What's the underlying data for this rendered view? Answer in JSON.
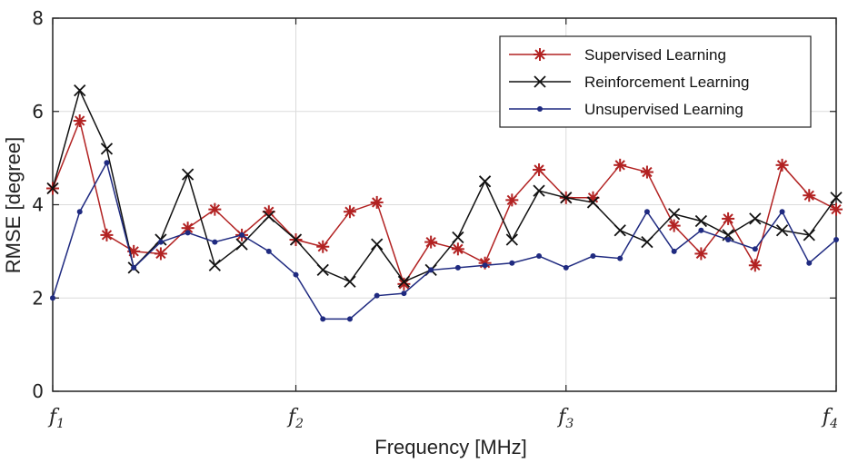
{
  "chart_data": {
    "type": "line",
    "xlabel": "Frequency [MHz]",
    "ylabel": "RMSE [degree]",
    "ylim": [
      0,
      8
    ],
    "yticks": [
      0,
      2,
      4,
      6,
      8
    ],
    "xlim": [
      0,
      29
    ],
    "xticks": [
      {
        "pos": 0,
        "base": "f",
        "sub": "1"
      },
      {
        "pos": 9,
        "base": "f",
        "sub": "2"
      },
      {
        "pos": 19,
        "base": "f",
        "sub": "3"
      },
      {
        "pos": 29,
        "base": "f",
        "sub": "4"
      }
    ],
    "grid": true,
    "legend_position": "top-right",
    "x": [
      0,
      1,
      2,
      3,
      4,
      5,
      6,
      7,
      8,
      9,
      10,
      11,
      12,
      13,
      14,
      15,
      16,
      17,
      18,
      19,
      20,
      21,
      22,
      23,
      24,
      25,
      26,
      27,
      28,
      29
    ],
    "series": [
      {
        "name": "Supervised Learning",
        "color": "#b22222",
        "marker": "asterisk",
        "values": [
          4.35,
          5.8,
          3.35,
          3.0,
          2.95,
          3.5,
          3.9,
          3.35,
          3.85,
          3.25,
          3.1,
          3.85,
          4.05,
          2.3,
          3.2,
          3.05,
          2.75,
          4.1,
          4.75,
          4.15,
          4.15,
          4.85,
          4.7,
          3.55,
          2.95,
          3.7,
          2.7,
          4.85,
          4.2,
          3.9
        ]
      },
      {
        "name": "Reinforcement Learning",
        "color": "#111111",
        "marker": "x",
        "values": [
          4.35,
          6.45,
          5.2,
          2.65,
          3.25,
          4.65,
          2.7,
          3.15,
          3.75,
          3.25,
          2.6,
          2.35,
          3.15,
          2.35,
          2.6,
          3.3,
          4.5,
          3.25,
          4.3,
          4.15,
          4.05,
          3.45,
          3.2,
          3.8,
          3.65,
          3.35,
          3.7,
          3.45,
          3.35,
          4.15
        ]
      },
      {
        "name": "Unsupervised Learning",
        "color": "#1f2a80",
        "marker": "dot",
        "values": [
          2.0,
          3.85,
          4.9,
          2.65,
          3.2,
          3.4,
          3.2,
          3.35,
          3.0,
          2.5,
          1.55,
          1.55,
          2.05,
          2.1,
          2.6,
          2.65,
          2.7,
          2.75,
          2.9,
          2.65,
          2.9,
          2.85,
          3.85,
          3.0,
          3.45,
          3.25,
          3.05,
          3.85,
          2.75,
          3.25
        ]
      }
    ]
  }
}
